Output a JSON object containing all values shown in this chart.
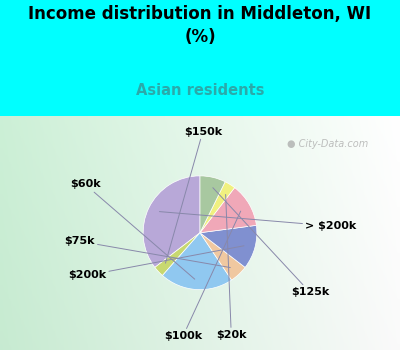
{
  "title": "Income distribution in Middleton, WI\n(%)",
  "subtitle": "Asian residents",
  "title_color": "#000000",
  "subtitle_color": "#2aaaaa",
  "background_top": "#00ffff",
  "background_chart_left": "#c8e8d0",
  "background_chart_right": "#e8f4f0",
  "labels": [
    "> $200k",
    "$150k",
    "$60k",
    "$75k",
    "$200k",
    "$100k",
    "$20k",
    "$125k"
  ],
  "values": [
    34,
    3,
    20,
    5,
    12,
    12,
    3,
    7
  ],
  "colors": [
    "#b8a8d8",
    "#c8d870",
    "#90c8f0",
    "#f0c8a0",
    "#8090d0",
    "#f0a8b8",
    "#f0f080",
    "#a8c8a0"
  ],
  "startangle": 90,
  "label_fontsize": 8,
  "watermark": "  City-Data.com"
}
